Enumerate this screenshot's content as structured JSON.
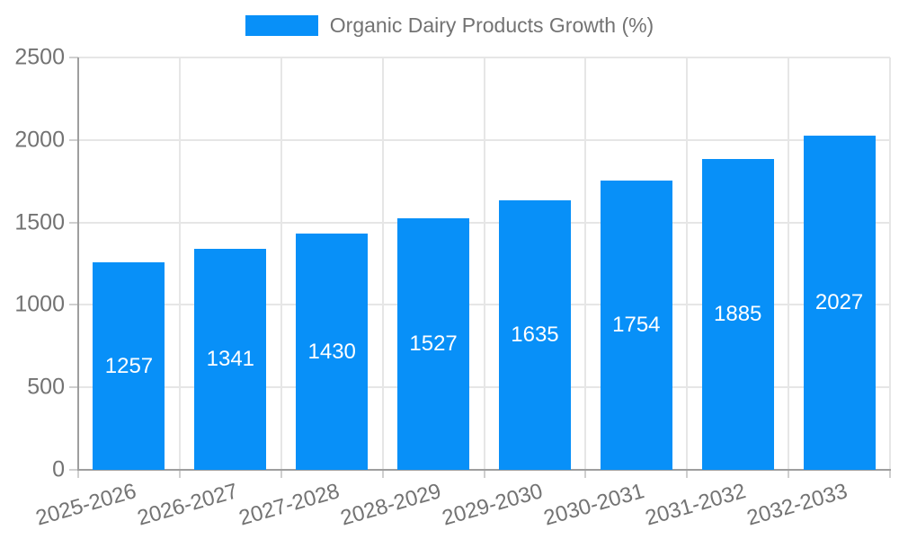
{
  "legend": {
    "label": "Organic Dairy Products Growth (%)"
  },
  "chart_data": {
    "type": "bar",
    "title": "Organic Dairy Products Growth (%)",
    "categories": [
      "2025-2026",
      "2026-2027",
      "2027-2028",
      "2028-2029",
      "2029-2030",
      "2030-2031",
      "2031-2032",
      "2032-2033"
    ],
    "values": [
      1257,
      1341,
      1430,
      1527,
      1635,
      1754,
      1885,
      2027
    ],
    "xlabel": "",
    "ylabel": "",
    "ylim": [
      0,
      2500
    ],
    "yticks": [
      0,
      500,
      1000,
      1500,
      2000,
      2500
    ],
    "grid": true,
    "legend_position": "top",
    "bar_color": "#0890f8",
    "value_label_color": "#ffffff",
    "axis_text_color": "#737373",
    "axis_line_color": "#9e9e9e",
    "gridline_color": "#e6e6e6",
    "tick_color": "#cfcfcf"
  }
}
